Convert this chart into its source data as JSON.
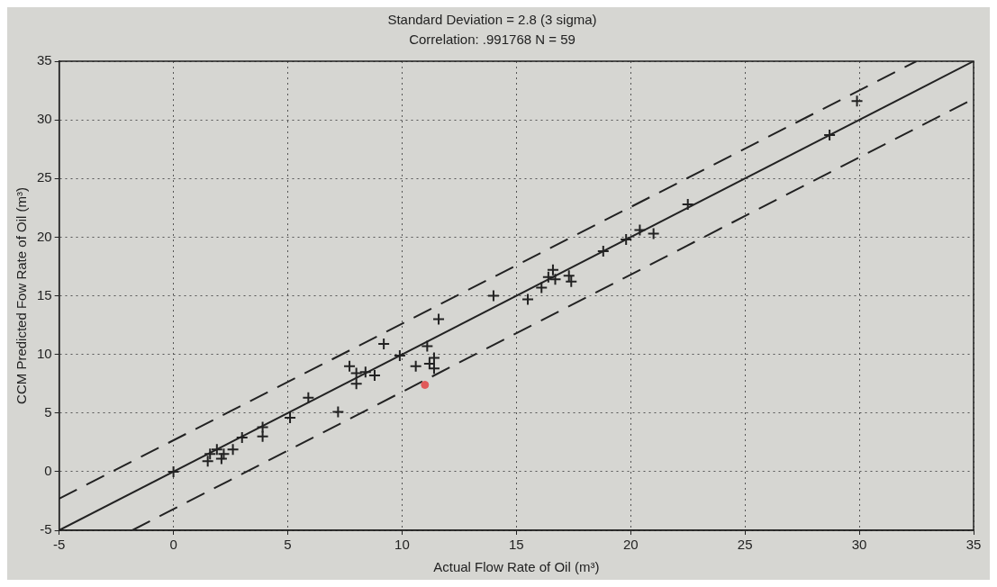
{
  "chart_data": {
    "type": "scatter",
    "title": "Standard Deviation = 2.8 (3 sigma)",
    "subtitle": "Correlation: .991768 N = 59",
    "xlabel": "Actual Flow Rate of Oil (m³)",
    "ylabel": "CCM Predicted Fow Rate of Oil (m³)",
    "xlim": [
      -5,
      35
    ],
    "ylim": [
      -5,
      35
    ],
    "xticks": [
      -5,
      0,
      5,
      10,
      15,
      20,
      25,
      30,
      35
    ],
    "yticks": [
      -5,
      0,
      5,
      10,
      15,
      20,
      25,
      30,
      35
    ],
    "grid": true,
    "legend": false,
    "series": [
      {
        "type": "scatter",
        "marker": "cross",
        "color": "#222222",
        "x": [
          0,
          1.5,
          1.6,
          1.9,
          2.2,
          2.1,
          2.6,
          3.0,
          3.9,
          3.9,
          5.1,
          5.9,
          7.2,
          7.7,
          8.0,
          8.0,
          8.4,
          8.8,
          9.2,
          9.9,
          10.6,
          11.1,
          11.2,
          11.4,
          11.4,
          11.6,
          14.0,
          15.5,
          16.1,
          16.4,
          16.6,
          16.7,
          17.3,
          17.4,
          18.8,
          19.8,
          20.4,
          21.0,
          22.5,
          28.7,
          29.9
        ],
        "values": [
          0,
          0.9,
          1.5,
          1.9,
          1.5,
          1.1,
          1.9,
          2.9,
          3.8,
          3.0,
          4.6,
          6.3,
          5.1,
          9.0,
          8.4,
          7.5,
          8.5,
          8.2,
          10.9,
          9.9,
          9.0,
          10.7,
          9.2,
          9.7,
          8.8,
          13.0,
          15.0,
          14.7,
          15.7,
          16.6,
          17.2,
          16.4,
          16.7,
          16.2,
          18.8,
          19.8,
          20.6,
          20.3,
          22.8,
          28.7,
          31.6
        ]
      },
      {
        "type": "scatter",
        "marker": "circle",
        "color": "#e05a5a",
        "x": [
          11.0
        ],
        "values": [
          7.4
        ]
      },
      {
        "type": "line",
        "line_style": "solid",
        "color": "#222222",
        "x": [
          -5,
          35
        ],
        "values": [
          -5,
          35
        ]
      },
      {
        "type": "line",
        "line_style": "dashed",
        "color": "#222222",
        "x": [
          -5,
          32.5
        ],
        "values": [
          -2.3,
          35
        ]
      },
      {
        "type": "line",
        "line_style": "dashed",
        "color": "#222222",
        "x": [
          -1.8,
          35
        ],
        "values": [
          -5,
          31.8
        ]
      }
    ]
  }
}
